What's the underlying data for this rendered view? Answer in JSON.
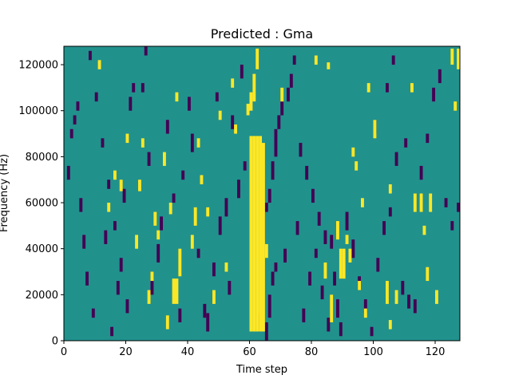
{
  "chart_data": {
    "type": "heatmap",
    "title": "Predicted : Gma",
    "xlabel": "Time step",
    "ylabel": "Frequency (Hz)",
    "xlim": [
      0,
      128
    ],
    "ylim": [
      0,
      128000
    ],
    "xticks": [
      0,
      20,
      40,
      60,
      80,
      100,
      120
    ],
    "yticks": [
      0,
      20000,
      40000,
      60000,
      80000,
      100000,
      120000
    ],
    "background_value": 0.5,
    "colormap": "viridis",
    "colors": {
      "low": "#440154",
      "mid": "#21918c",
      "high": "#fde725"
    },
    "yellow_cells": [
      [
        60,
        4000,
        89000
      ],
      [
        61,
        4000,
        89000
      ],
      [
        62,
        4000,
        89000
      ],
      [
        63,
        4000,
        89000
      ],
      [
        64,
        4000,
        86000
      ],
      [
        59,
        98000,
        103000
      ],
      [
        60,
        100000,
        108000
      ],
      [
        61,
        104000,
        116000
      ],
      [
        62,
        118000,
        127000
      ],
      [
        35,
        16000,
        27000
      ],
      [
        36,
        16000,
        27000
      ],
      [
        37,
        28000,
        40000
      ],
      [
        27,
        16000,
        22000
      ],
      [
        33,
        5000,
        11000
      ],
      [
        34,
        55000,
        60000
      ],
      [
        42,
        50000,
        58000
      ],
      [
        18,
        65000,
        70000
      ],
      [
        89,
        27000,
        40000
      ],
      [
        90,
        27000,
        40000
      ],
      [
        91,
        42000,
        46000
      ],
      [
        92,
        34000,
        40000
      ],
      [
        104,
        16000,
        26000
      ],
      [
        105,
        5000,
        9000
      ],
      [
        107,
        16000,
        22000
      ],
      [
        113,
        56000,
        64000
      ],
      [
        115,
        56000,
        64000
      ],
      [
        118,
        56000,
        64000
      ],
      [
        105,
        64000,
        68000
      ],
      [
        100,
        88000,
        96000
      ],
      [
        117,
        26000,
        32000
      ],
      [
        84,
        27000,
        34000
      ],
      [
        86,
        8000,
        20000
      ],
      [
        41,
        40000,
        46000
      ],
      [
        24,
        65000,
        70000
      ],
      [
        50,
        96000,
        100000
      ],
      [
        54,
        110000,
        114000
      ],
      [
        70,
        104000,
        110000
      ],
      [
        98,
        108000,
        112000
      ],
      [
        81,
        120000,
        124000
      ],
      [
        85,
        118000,
        121000
      ],
      [
        112,
        108000,
        112000
      ],
      [
        126,
        100000,
        104000
      ],
      [
        127,
        118000,
        127000
      ],
      [
        125,
        120000,
        127000
      ],
      [
        16,
        70000,
        74000
      ],
      [
        25,
        84000,
        88000
      ],
      [
        43,
        84000,
        88000
      ],
      [
        46,
        54000,
        58000
      ],
      [
        52,
        30000,
        34000
      ],
      [
        65,
        36000,
        42000
      ],
      [
        30,
        44000,
        48000
      ],
      [
        32,
        76000,
        82000
      ],
      [
        36,
        104000,
        108000
      ],
      [
        14,
        56000,
        60000
      ],
      [
        23,
        40000,
        46000
      ],
      [
        28,
        26000,
        30000
      ],
      [
        55,
        90000,
        94000
      ],
      [
        93,
        80000,
        84000
      ],
      [
        94,
        74000,
        78000
      ],
      [
        96,
        58000,
        62000
      ],
      [
        116,
        46000,
        50000
      ],
      [
        120,
        16000,
        22000
      ],
      [
        88,
        44000,
        52000
      ],
      [
        95,
        22000,
        26000
      ],
      [
        97,
        10000,
        14000
      ],
      [
        11,
        118000,
        122000
      ],
      [
        20,
        86000,
        90000
      ],
      [
        29,
        50000,
        56000
      ],
      [
        44,
        68000,
        72000
      ],
      [
        48,
        16000,
        22000
      ]
    ],
    "purple_cells": [
      [
        63,
        4000,
        12000
      ],
      [
        65,
        0,
        8000
      ],
      [
        66,
        10000,
        20000
      ],
      [
        67,
        24000,
        30000
      ],
      [
        68,
        30000,
        34000
      ],
      [
        64,
        44000,
        56000
      ],
      [
        65,
        56000,
        60000
      ],
      [
        66,
        60000,
        66000
      ],
      [
        67,
        70000,
        78000
      ],
      [
        68,
        80000,
        92000
      ],
      [
        69,
        92000,
        98000
      ],
      [
        70,
        98000,
        104000
      ],
      [
        72,
        104000,
        110000
      ],
      [
        73,
        110000,
        116000
      ],
      [
        74,
        120000,
        124000
      ],
      [
        45,
        10000,
        16000
      ],
      [
        46,
        4000,
        12000
      ],
      [
        48,
        28000,
        34000
      ],
      [
        50,
        46000,
        54000
      ],
      [
        52,
        54000,
        62000
      ],
      [
        56,
        62000,
        70000
      ],
      [
        58,
        74000,
        78000
      ],
      [
        40,
        100000,
        106000
      ],
      [
        41,
        82000,
        90000
      ],
      [
        38,
        70000,
        74000
      ],
      [
        35,
        60000,
        64000
      ],
      [
        31,
        48000,
        54000
      ],
      [
        30,
        34000,
        42000
      ],
      [
        28,
        20000,
        26000
      ],
      [
        20,
        12000,
        18000
      ],
      [
        18,
        30000,
        36000
      ],
      [
        16,
        48000,
        52000
      ],
      [
        14,
        66000,
        70000
      ],
      [
        12,
        84000,
        88000
      ],
      [
        10,
        104000,
        108000
      ],
      [
        8,
        122000,
        126000
      ],
      [
        4,
        100000,
        104000
      ],
      [
        3,
        94000,
        98000
      ],
      [
        2,
        88000,
        92000
      ],
      [
        1,
        70000,
        76000
      ],
      [
        5,
        56000,
        62000
      ],
      [
        6,
        40000,
        46000
      ],
      [
        7,
        24000,
        30000
      ],
      [
        9,
        10000,
        14000
      ],
      [
        13,
        42000,
        48000
      ],
      [
        15,
        2000,
        6000
      ],
      [
        17,
        20000,
        26000
      ],
      [
        19,
        60000,
        66000
      ],
      [
        21,
        100000,
        106000
      ],
      [
        22,
        108000,
        112000
      ],
      [
        26,
        124000,
        128000
      ],
      [
        76,
        80000,
        86000
      ],
      [
        78,
        70000,
        76000
      ],
      [
        80,
        60000,
        66000
      ],
      [
        82,
        50000,
        56000
      ],
      [
        84,
        42000,
        48000
      ],
      [
        86,
        40000,
        46000
      ],
      [
        87,
        24000,
        30000
      ],
      [
        88,
        10000,
        18000
      ],
      [
        89,
        2000,
        8000
      ],
      [
        91,
        48000,
        56000
      ],
      [
        93,
        36000,
        44000
      ],
      [
        95,
        22000,
        28000
      ],
      [
        97,
        12000,
        18000
      ],
      [
        99,
        2000,
        6000
      ],
      [
        101,
        30000,
        36000
      ],
      [
        103,
        46000,
        52000
      ],
      [
        105,
        54000,
        58000
      ],
      [
        107,
        76000,
        82000
      ],
      [
        109,
        20000,
        26000
      ],
      [
        111,
        14000,
        20000
      ],
      [
        113,
        12000,
        18000
      ],
      [
        115,
        70000,
        76000
      ],
      [
        117,
        86000,
        90000
      ],
      [
        119,
        104000,
        110000
      ],
      [
        121,
        112000,
        118000
      ],
      [
        123,
        58000,
        62000
      ],
      [
        125,
        48000,
        52000
      ],
      [
        127,
        56000,
        60000
      ],
      [
        100,
        90000,
        96000
      ],
      [
        104,
        108000,
        112000
      ],
      [
        106,
        120000,
        124000
      ],
      [
        110,
        84000,
        88000
      ],
      [
        54,
        92000,
        98000
      ],
      [
        57,
        114000,
        120000
      ],
      [
        71,
        34000,
        40000
      ],
      [
        75,
        46000,
        52000
      ],
      [
        77,
        8000,
        14000
      ],
      [
        79,
        24000,
        30000
      ],
      [
        81,
        36000,
        40000
      ],
      [
        83,
        18000,
        24000
      ],
      [
        85,
        4000,
        10000
      ],
      [
        43,
        36000,
        40000
      ],
      [
        49,
        104000,
        108000
      ],
      [
        53,
        20000,
        26000
      ],
      [
        37,
        8000,
        14000
      ],
      [
        33,
        90000,
        96000
      ],
      [
        27,
        76000,
        82000
      ],
      [
        25,
        108000,
        112000
      ]
    ]
  }
}
